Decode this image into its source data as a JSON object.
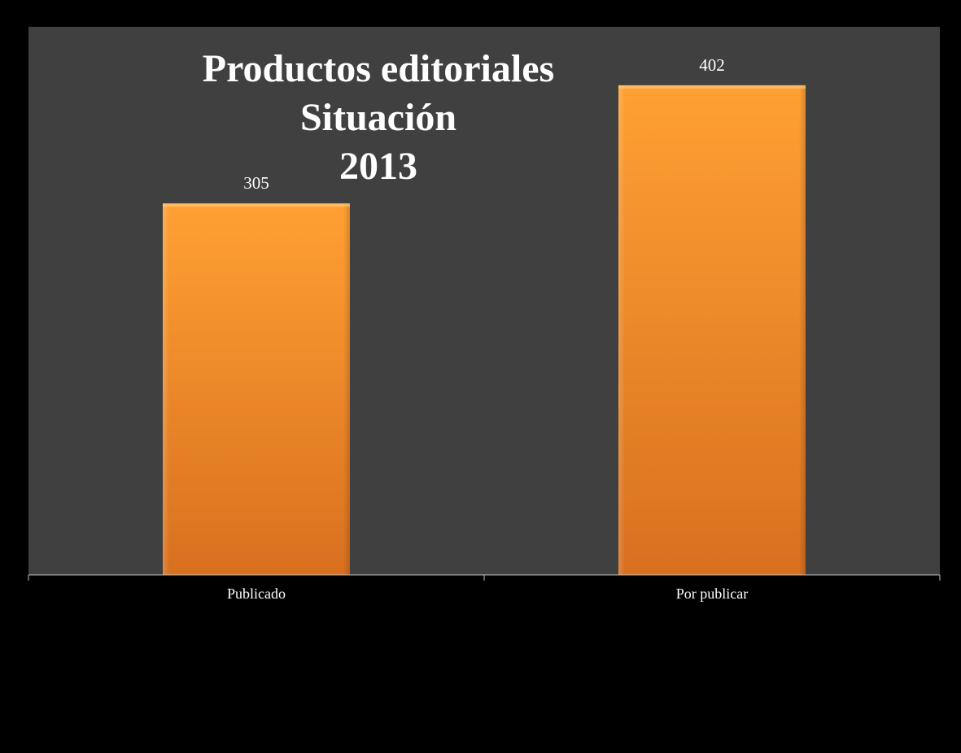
{
  "colors": {
    "page_background": "#000000",
    "plot_background": "#404040",
    "bar_top": "#ffa033",
    "bar_bottom": "#d8701f",
    "axis": "#bfbfbf",
    "text": "#ffffff"
  },
  "chart_data": {
    "type": "bar",
    "title_lines": [
      "Productos editoriales",
      "Situación",
      "2013"
    ],
    "categories": [
      "Publicado",
      "Por publicar"
    ],
    "values": [
      305,
      402
    ],
    "data_labels": [
      "305",
      "402"
    ],
    "ylim": [
      0,
      450
    ],
    "grid": false,
    "legend": "none",
    "xlabel": "",
    "ylabel": ""
  }
}
